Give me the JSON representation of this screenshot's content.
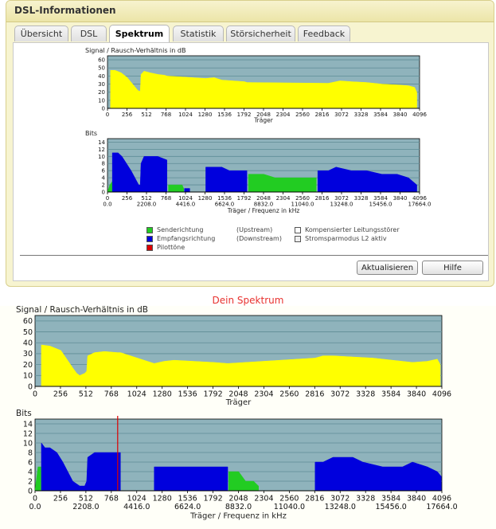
{
  "window": {
    "title": "DSL-Informationen"
  },
  "tabs": [
    {
      "label": "Übersicht",
      "active": false
    },
    {
      "label": "DSL",
      "active": false
    },
    {
      "label": "Spektrum",
      "active": true
    },
    {
      "label": "Statistik",
      "active": false
    },
    {
      "label": "Störsicherheit",
      "active": false
    },
    {
      "label": "Feedback",
      "active": false
    }
  ],
  "legend": {
    "upstream_label": "Senderichtung",
    "upstream_note": "(Upstream)",
    "downstream_label": "Empfangsrichtung",
    "downstream_note": "(Downstream)",
    "pilot_label": "Pilottöne",
    "komp_label": "Kompensierter Leitungsstörer",
    "l2_label": "Stromsparmodus L2 aktiv",
    "colors": {
      "upstream": "#22cc22",
      "downstream": "#0000dd",
      "pilot": "#dd0000",
      "snr": "#ffff00",
      "background": "#8fb3bc"
    }
  },
  "buttons": {
    "refresh": "Aktualisieren",
    "help": "Hilfe"
  },
  "caption": "Dein Spektrum",
  "chart_data": [
    {
      "type": "area",
      "title": "Signal / Rausch-Verhältnis in dB",
      "xlabel": "Träger",
      "xlim": [
        0,
        4096
      ],
      "ylim": [
        0,
        65
      ],
      "yticks": [
        0,
        10,
        20,
        30,
        40,
        50,
        60
      ],
      "xticks": [
        "0",
        "256",
        "512",
        "768",
        "1024",
        "1280",
        "1536",
        "1792",
        "2048",
        "2304",
        "2560",
        "2816",
        "3072",
        "3328",
        "3584",
        "3840",
        "4096"
      ],
      "series": [
        {
          "color": "#ffff00",
          "points": [
            [
              40,
              47
            ],
            [
              100,
              47
            ],
            [
              180,
              44
            ],
            [
              260,
              38
            ],
            [
              330,
              30
            ],
            [
              400,
              22
            ],
            [
              430,
              21
            ],
            [
              440,
              42
            ],
            [
              480,
              46
            ],
            [
              560,
              44
            ],
            [
              660,
              42
            ],
            [
              750,
              41
            ],
            [
              780,
              40
            ],
            [
              1290,
              37
            ],
            [
              1400,
              38
            ],
            [
              1500,
              35
            ],
            [
              1650,
              34
            ],
            [
              1800,
              33
            ],
            [
              1830,
              32
            ],
            [
              2900,
              31
            ],
            [
              3050,
              34
            ],
            [
              3200,
              33
            ],
            [
              3400,
              32
            ],
            [
              3600,
              30
            ],
            [
              3800,
              29
            ],
            [
              3950,
              28
            ],
            [
              4030,
              26
            ],
            [
              4060,
              20
            ]
          ]
        }
      ]
    },
    {
      "type": "area",
      "title": "Bits",
      "xlabel": "Träger / Frequenz in kHz",
      "xlim": [
        0,
        4096
      ],
      "ylim": [
        0,
        15
      ],
      "yticks": [
        0,
        2,
        4,
        6,
        8,
        10,
        12,
        14
      ],
      "xticks": [
        "0",
        "256",
        "512",
        "768",
        "1024",
        "1280",
        "1536",
        "1792",
        "2048",
        "2304",
        "2560",
        "2816",
        "3072",
        "3328",
        "3584",
        "3840",
        "4096"
      ],
      "freq_ticks": [
        "0.0",
        "2208.0",
        "4416.0",
        "6624.0",
        "8832.0",
        "11040.0",
        "13248.0",
        "15456.0",
        "17664.0"
      ],
      "series": [
        {
          "color": "#22cc22",
          "points": [
            [
              0,
              0
            ],
            [
              32,
              2
            ],
            [
              64,
              3
            ]
          ]
        },
        {
          "color": "#0000dd",
          "points": [
            [
              64,
              11
            ],
            [
              140,
              11
            ],
            [
              190,
              10
            ],
            [
              250,
              8
            ],
            [
              310,
              6
            ],
            [
              360,
              4
            ],
            [
              410,
              2
            ],
            [
              430,
              2
            ],
            [
              440,
              8
            ],
            [
              480,
              10
            ],
            [
              560,
              10
            ],
            [
              660,
              10
            ],
            [
              780,
              9
            ]
          ]
        },
        {
          "color": "#22cc22",
          "points": [
            [
              800,
              2
            ],
            [
              980,
              2
            ],
            [
              1000,
              1
            ]
          ]
        },
        {
          "color": "#0000dd",
          "points": [
            [
              1010,
              1
            ],
            [
              1080,
              1
            ]
          ]
        },
        {
          "color": "#0000dd",
          "points": [
            [
              1290,
              7
            ],
            [
              1500,
              7
            ],
            [
              1600,
              6
            ],
            [
              1800,
              6
            ],
            [
              1830,
              6
            ]
          ]
        },
        {
          "color": "#22cc22",
          "points": [
            [
              1850,
              5
            ],
            [
              2050,
              5
            ],
            [
              2200,
              4
            ],
            [
              2400,
              4
            ],
            [
              2740,
              4
            ]
          ]
        },
        {
          "color": "#0000dd",
          "points": [
            [
              2760,
              6
            ],
            [
              2900,
              6
            ],
            [
              3000,
              7
            ],
            [
              3200,
              6
            ],
            [
              3400,
              6
            ],
            [
              3600,
              5
            ],
            [
              3800,
              5
            ],
            [
              3950,
              4
            ],
            [
              4060,
              2
            ]
          ]
        }
      ]
    },
    {
      "type": "area",
      "title": "Signal / Rausch-Verhältnis in dB",
      "xlabel": "Träger",
      "xlim": [
        0,
        4096
      ],
      "ylim": [
        0,
        65
      ],
      "yticks": [
        0,
        10,
        20,
        30,
        40,
        50,
        60
      ],
      "xticks": [
        "0",
        "256",
        "512",
        "768",
        "1024",
        "1280",
        "1536",
        "1792",
        "2048",
        "2304",
        "2560",
        "2816",
        "3072",
        "3328",
        "3584",
        "3840",
        "4096"
      ],
      "series": [
        {
          "color": "#ffff00",
          "points": [
            [
              64,
              38
            ],
            [
              150,
              37
            ],
            [
              260,
              33
            ],
            [
              320,
              25
            ],
            [
              380,
              17
            ],
            [
              420,
              12
            ],
            [
              450,
              10
            ],
            [
              500,
              12
            ],
            [
              520,
              14
            ],
            [
              530,
              28
            ],
            [
              600,
              31
            ],
            [
              700,
              32
            ],
            [
              830,
              31
            ],
            [
              860,
              31
            ],
            [
              1200,
              21
            ],
            [
              1300,
              23
            ],
            [
              1400,
              24
            ],
            [
              1600,
              23
            ],
            [
              1800,
              22
            ],
            [
              1940,
              21
            ],
            [
              2820,
              26
            ],
            [
              2900,
              28
            ],
            [
              3000,
              28
            ],
            [
              3200,
              27
            ],
            [
              3400,
              26
            ],
            [
              3600,
              24
            ],
            [
              3800,
              22
            ],
            [
              3950,
              23
            ],
            [
              4050,
              25
            ],
            [
              4080,
              20
            ]
          ]
        }
      ]
    },
    {
      "type": "area",
      "title": "Bits",
      "xlabel": "Träger / Frequenz in kHz",
      "xlim": [
        0,
        4096
      ],
      "ylim": [
        0,
        15
      ],
      "yticks": [
        0,
        2,
        4,
        6,
        8,
        10,
        12,
        14
      ],
      "xticks": [
        "0",
        "256",
        "512",
        "768",
        "1024",
        "1280",
        "1536",
        "1792",
        "2048",
        "2304",
        "2560",
        "2816",
        "3072",
        "3328",
        "3584",
        "3840",
        "4096"
      ],
      "freq_ticks": [
        "0.0",
        "2208.0",
        "4416.0",
        "6624.0",
        "8832.0",
        "11040.0",
        "13248.0",
        "15456.0",
        "17664.0"
      ],
      "series": [
        {
          "color": "#22cc22",
          "points": [
            [
              0,
              0
            ],
            [
              30,
              5
            ],
            [
              60,
              5
            ]
          ]
        },
        {
          "color": "#0000dd",
          "points": [
            [
              64,
              10
            ],
            [
              100,
              9
            ],
            [
              150,
              9
            ],
            [
              220,
              8
            ],
            [
              280,
              6
            ],
            [
              330,
              4
            ],
            [
              380,
              2
            ],
            [
              450,
              1
            ],
            [
              500,
              1
            ],
            [
              520,
              2
            ],
            [
              530,
              7
            ],
            [
              600,
              8
            ],
            [
              700,
              8
            ],
            [
              800,
              8
            ],
            [
              860,
              8
            ]
          ]
        },
        {
          "color": "#0000dd",
          "points": [
            [
              1200,
              5
            ],
            [
              1500,
              5
            ],
            [
              1700,
              5
            ],
            [
              1800,
              5
            ],
            [
              1940,
              5
            ]
          ]
        },
        {
          "color": "#22cc22",
          "points": [
            [
              1950,
              4
            ],
            [
              2050,
              4
            ],
            [
              2120,
              2
            ],
            [
              2200,
              2
            ],
            [
              2250,
              1
            ]
          ]
        },
        {
          "color": "#0000dd",
          "points": [
            [
              2820,
              6
            ],
            [
              2900,
              6
            ],
            [
              3000,
              7
            ],
            [
              3200,
              7
            ],
            [
              3300,
              6
            ],
            [
              3500,
              5
            ],
            [
              3700,
              5
            ],
            [
              3800,
              6
            ],
            [
              3950,
              5
            ],
            [
              4050,
              4
            ],
            [
              4090,
              3
            ]
          ]
        }
      ],
      "pilot_carrier": 832
    }
  ]
}
